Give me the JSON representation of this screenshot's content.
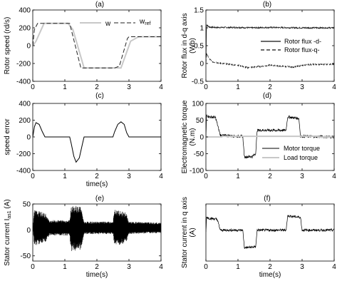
{
  "chart_data": [
    {
      "type": "line",
      "panel_label": "(a)",
      "xlabel": "",
      "ylabel": "Rotor speed (rd/s)",
      "xlim": [
        0,
        4
      ],
      "ylim": [
        -400,
        400
      ],
      "xticks": [
        "0",
        "1",
        "2",
        "3",
        "4"
      ],
      "yticks": [
        "400",
        "200",
        "0",
        "-200",
        "-400"
      ],
      "legend_position": "top-right",
      "series": [
        {
          "name": "w",
          "color": "#c8c8c8",
          "dash": "solid",
          "x": [
            0,
            0.1,
            0.35,
            1.1,
            1.25,
            1.6,
            2.25,
            2.75,
            3.05,
            3.3,
            4
          ],
          "y": [
            0,
            50,
            250,
            250,
            180,
            -250,
            -250,
            -250,
            50,
            100,
            100
          ]
        },
        {
          "name": "w_ref",
          "color": "#222222",
          "dash": "dash",
          "x": [
            0,
            0.05,
            0.15,
            1.15,
            1.5,
            2.55,
            2.7,
            2.95,
            3.0,
            4
          ],
          "y": [
            0,
            180,
            250,
            250,
            -250,
            -250,
            -230,
            80,
            100,
            100
          ]
        }
      ],
      "legend": {
        "w": "w",
        "w_ref_base": "w",
        "w_ref_sub": "ref"
      }
    },
    {
      "type": "line",
      "panel_label": "(b)",
      "xlabel": "",
      "ylabel": "Rotor flux in d-q axis (Wb)",
      "xlim": [
        0,
        4
      ],
      "ylim": [
        -0.5,
        1.5
      ],
      "xticks": [
        "0",
        "1",
        "2",
        "3",
        "4"
      ],
      "yticks": [
        "1.5",
        "1",
        "0.5",
        "0",
        "-0.5"
      ],
      "legend_position": "middle-right",
      "series": [
        {
          "name": "Rotor flux -d-",
          "color": "#111111",
          "dash": "solid",
          "x": [
            0,
            0.02,
            0.06,
            0.12,
            0.3,
            1.0,
            1.4,
            2.0,
            3.0,
            4
          ],
          "y": [
            0,
            1.1,
            1.05,
            1.02,
            1.01,
            1.01,
            1.0,
            1.01,
            1.0,
            1.0
          ]
        },
        {
          "name": "Rotor flux-q-",
          "color": "#111111",
          "dash": "dash",
          "x": [
            0,
            0.02,
            0.08,
            0.2,
            0.5,
            1.0,
            1.3,
            1.7,
            2.0,
            2.7,
            3.2,
            4
          ],
          "y": [
            0,
            0.3,
            0.15,
            0.05,
            0.0,
            -0.05,
            -0.12,
            -0.08,
            -0.05,
            -0.1,
            -0.03,
            -0.02
          ]
        }
      ]
    },
    {
      "type": "line",
      "panel_label": "(c)",
      "xlabel": "time(s)",
      "ylabel": "speed error",
      "xlim": [
        0,
        4
      ],
      "ylim": [
        -400,
        400
      ],
      "xticks": [
        "0",
        "1",
        "2",
        "3",
        "4"
      ],
      "yticks": [
        "400",
        "200",
        "0",
        "-200",
        "-400"
      ],
      "series": [
        {
          "name": "",
          "color": "#000000",
          "dash": "solid",
          "x": [
            0,
            0.05,
            0.1,
            0.2,
            0.3,
            0.38,
            0.45,
            1.15,
            1.2,
            1.28,
            1.35,
            1.45,
            1.55,
            1.6,
            2.5,
            2.55,
            2.65,
            2.75,
            2.85,
            2.93,
            3.0,
            4
          ],
          "y": [
            0,
            120,
            170,
            150,
            60,
            0,
            0,
            0,
            -80,
            -230,
            -300,
            -250,
            -80,
            0,
            0,
            60,
            150,
            180,
            150,
            50,
            0,
            0
          ]
        }
      ]
    },
    {
      "type": "line",
      "panel_label": "(d)",
      "xlabel": "",
      "ylabel": "Electromagnetic torque (N.m)",
      "xlim": [
        0,
        4
      ],
      "ylim": [
        -100,
        100
      ],
      "xticks": [
        "0",
        "1",
        "2",
        "3",
        "4"
      ],
      "yticks": [
        "100",
        "50",
        "0",
        "-50",
        "-100"
      ],
      "legend_position": "bottom-right",
      "series": [
        {
          "name": "Motor torque",
          "color": "#000000",
          "dash": "solid",
          "x": [
            0,
            0.02,
            0.1,
            0.3,
            0.45,
            1.0,
            1.15,
            1.2,
            1.45,
            1.55,
            1.6,
            2.5,
            2.55,
            2.9,
            2.95,
            4
          ],
          "y": [
            0,
            65,
            60,
            58,
            5,
            2,
            2,
            -60,
            -58,
            -50,
            20,
            20,
            60,
            55,
            2,
            0
          ]
        },
        {
          "name": "Load torque",
          "color": "#c8c8c8",
          "dash": "solid",
          "x": [
            0,
            0.5,
            0.5,
            3.5,
            3.5,
            4
          ],
          "y": [
            0,
            0,
            2,
            2,
            0,
            0
          ]
        }
      ]
    },
    {
      "type": "line",
      "panel_label": "(e)",
      "xlabel": "time(s)",
      "ylabel_base": "Stator current I",
      "ylabel_sub": "as1",
      "ylabel_unit": " (A)",
      "xlim": [
        0,
        4
      ],
      "ylim": [
        -60,
        50
      ],
      "xticks": [
        "0",
        "1",
        "2",
        "3",
        "4"
      ],
      "yticks": [
        "50",
        "0",
        "-50"
      ],
      "series": [
        {
          "name": "",
          "color": "#000000",
          "dash": "solid",
          "envelope": {
            "t": [
              0,
              0.05,
              0.4,
              0.5,
              1.15,
              1.2,
              1.5,
              1.6,
              2.5,
              2.55,
              2.9,
              3.0,
              4
            ],
            "amp": [
              0,
              35,
              28,
              15,
              15,
              45,
              42,
              12,
              12,
              35,
              30,
              12,
              10
            ]
          }
        }
      ]
    },
    {
      "type": "line",
      "panel_label": "(f)",
      "xlabel": "time(s)",
      "ylabel": "Stator current in q axis (A)",
      "xlim": [
        0,
        4
      ],
      "ylim": [
        -60,
        60
      ],
      "xticks": [
        "0",
        "1",
        "2",
        "3",
        "4"
      ],
      "yticks": [],
      "series": [
        {
          "name": "",
          "color": "#000000",
          "dash": "solid",
          "x": [
            0,
            0.02,
            0.1,
            0.35,
            0.45,
            1.15,
            1.2,
            1.55,
            1.6,
            2.5,
            2.55,
            2.95,
            3.0,
            4
          ],
          "y": [
            0,
            32,
            30,
            28,
            5,
            5,
            -32,
            -30,
            5,
            5,
            35,
            32,
            5,
            5
          ]
        }
      ]
    }
  ]
}
